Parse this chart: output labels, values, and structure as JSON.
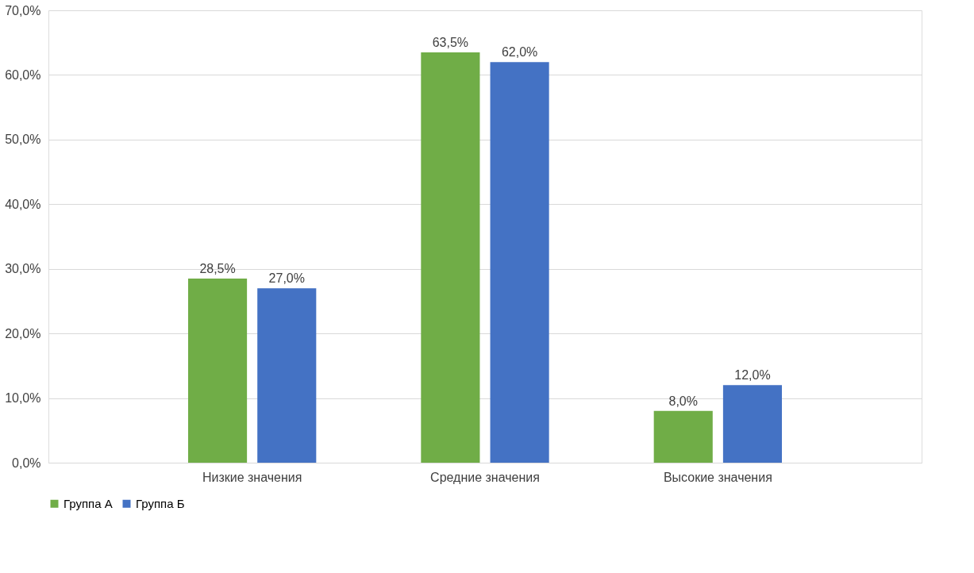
{
  "chart_data": {
    "type": "bar",
    "categories": [
      "Низкие значения",
      "Средние значения",
      "Высокие значения"
    ],
    "series": [
      {
        "name": "Группа А",
        "color": "#70ad47",
        "values": [
          28.5,
          63.5,
          8.0
        ],
        "value_labels": [
          "28,5%",
          "63,5%",
          "8,0%"
        ]
      },
      {
        "name": "Группа Б",
        "color": "#4472c4",
        "values": [
          27.0,
          62.0,
          12.0
        ],
        "value_labels": [
          "27,0%",
          "62,0%",
          "12,0%"
        ]
      }
    ],
    "ylim": [
      0,
      70
    ],
    "yticks": [
      {
        "value": 0,
        "label": "0,0%"
      },
      {
        "value": 10,
        "label": "10,0%"
      },
      {
        "value": 20,
        "label": "20,0%"
      },
      {
        "value": 30,
        "label": "30,0%"
      },
      {
        "value": 40,
        "label": "40,0%"
      },
      {
        "value": 50,
        "label": "50,0%"
      },
      {
        "value": 60,
        "label": "60,0%"
      },
      {
        "value": 70,
        "label": "70,0%"
      }
    ],
    "grid": "y",
    "legend": "bottom"
  }
}
